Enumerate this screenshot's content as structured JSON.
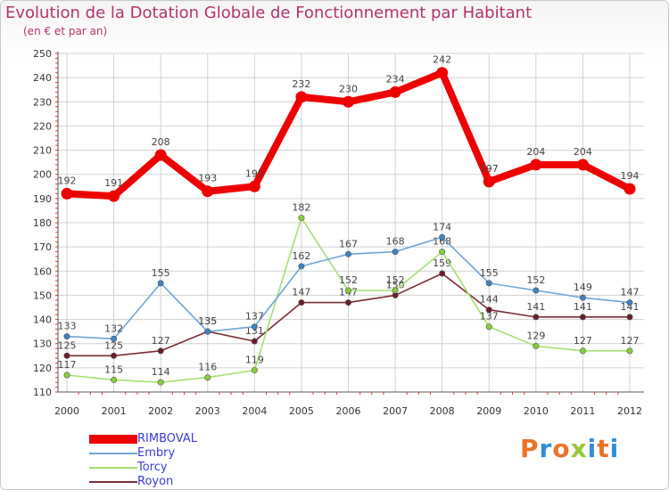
{
  "header": {
    "title": "Evolution de la Dotation Globale de Fonctionnement par Habitant",
    "subtitle": "(en € et par an)"
  },
  "logo": {
    "text": "Proxiti"
  },
  "colors": {
    "title": "#b2336e",
    "legend_text": "#3b3bd6",
    "grid": "#d0d0d0"
  },
  "chart_data": {
    "type": "line",
    "title": "Evolution de la Dotation Globale de Fonctionnement par Habitant",
    "subtitle": "(en € et par an)",
    "xlabel": "",
    "ylabel": "",
    "x": [
      "2000",
      "2001",
      "2002",
      "2003",
      "2004",
      "2005",
      "2006",
      "2007",
      "2008",
      "2009",
      "2010",
      "2011",
      "2012"
    ],
    "ylim": [
      110,
      250
    ],
    "yticks": [
      110,
      120,
      130,
      140,
      150,
      160,
      170,
      180,
      190,
      200,
      210,
      220,
      230,
      240,
      250
    ],
    "grid": true,
    "legend_position": "bottom-left",
    "series": [
      {
        "name": "RIMBOVAL",
        "color": "#ee0000",
        "marker": "#ee0000",
        "values": [
          192,
          191,
          208,
          193,
          195,
          232,
          230,
          234,
          242,
          197,
          204,
          204,
          194
        ]
      },
      {
        "name": "Embry",
        "color": "#6fa5d6",
        "marker": "#3d83c4",
        "values": [
          133,
          132,
          155,
          135,
          137,
          162,
          167,
          168,
          174,
          155,
          152,
          149,
          147
        ]
      },
      {
        "name": "Torcy",
        "color": "#a6e06f",
        "marker": "#86cf3c",
        "values": [
          117,
          115,
          114,
          116,
          119,
          182,
          152,
          152,
          168,
          137,
          129,
          127,
          127
        ]
      },
      {
        "name": "Royon",
        "color": "#7a2b35",
        "marker": "#6a1e28",
        "values": [
          125,
          125,
          127,
          135,
          131,
          147,
          147,
          150,
          159,
          144,
          141,
          141,
          141
        ]
      }
    ]
  }
}
